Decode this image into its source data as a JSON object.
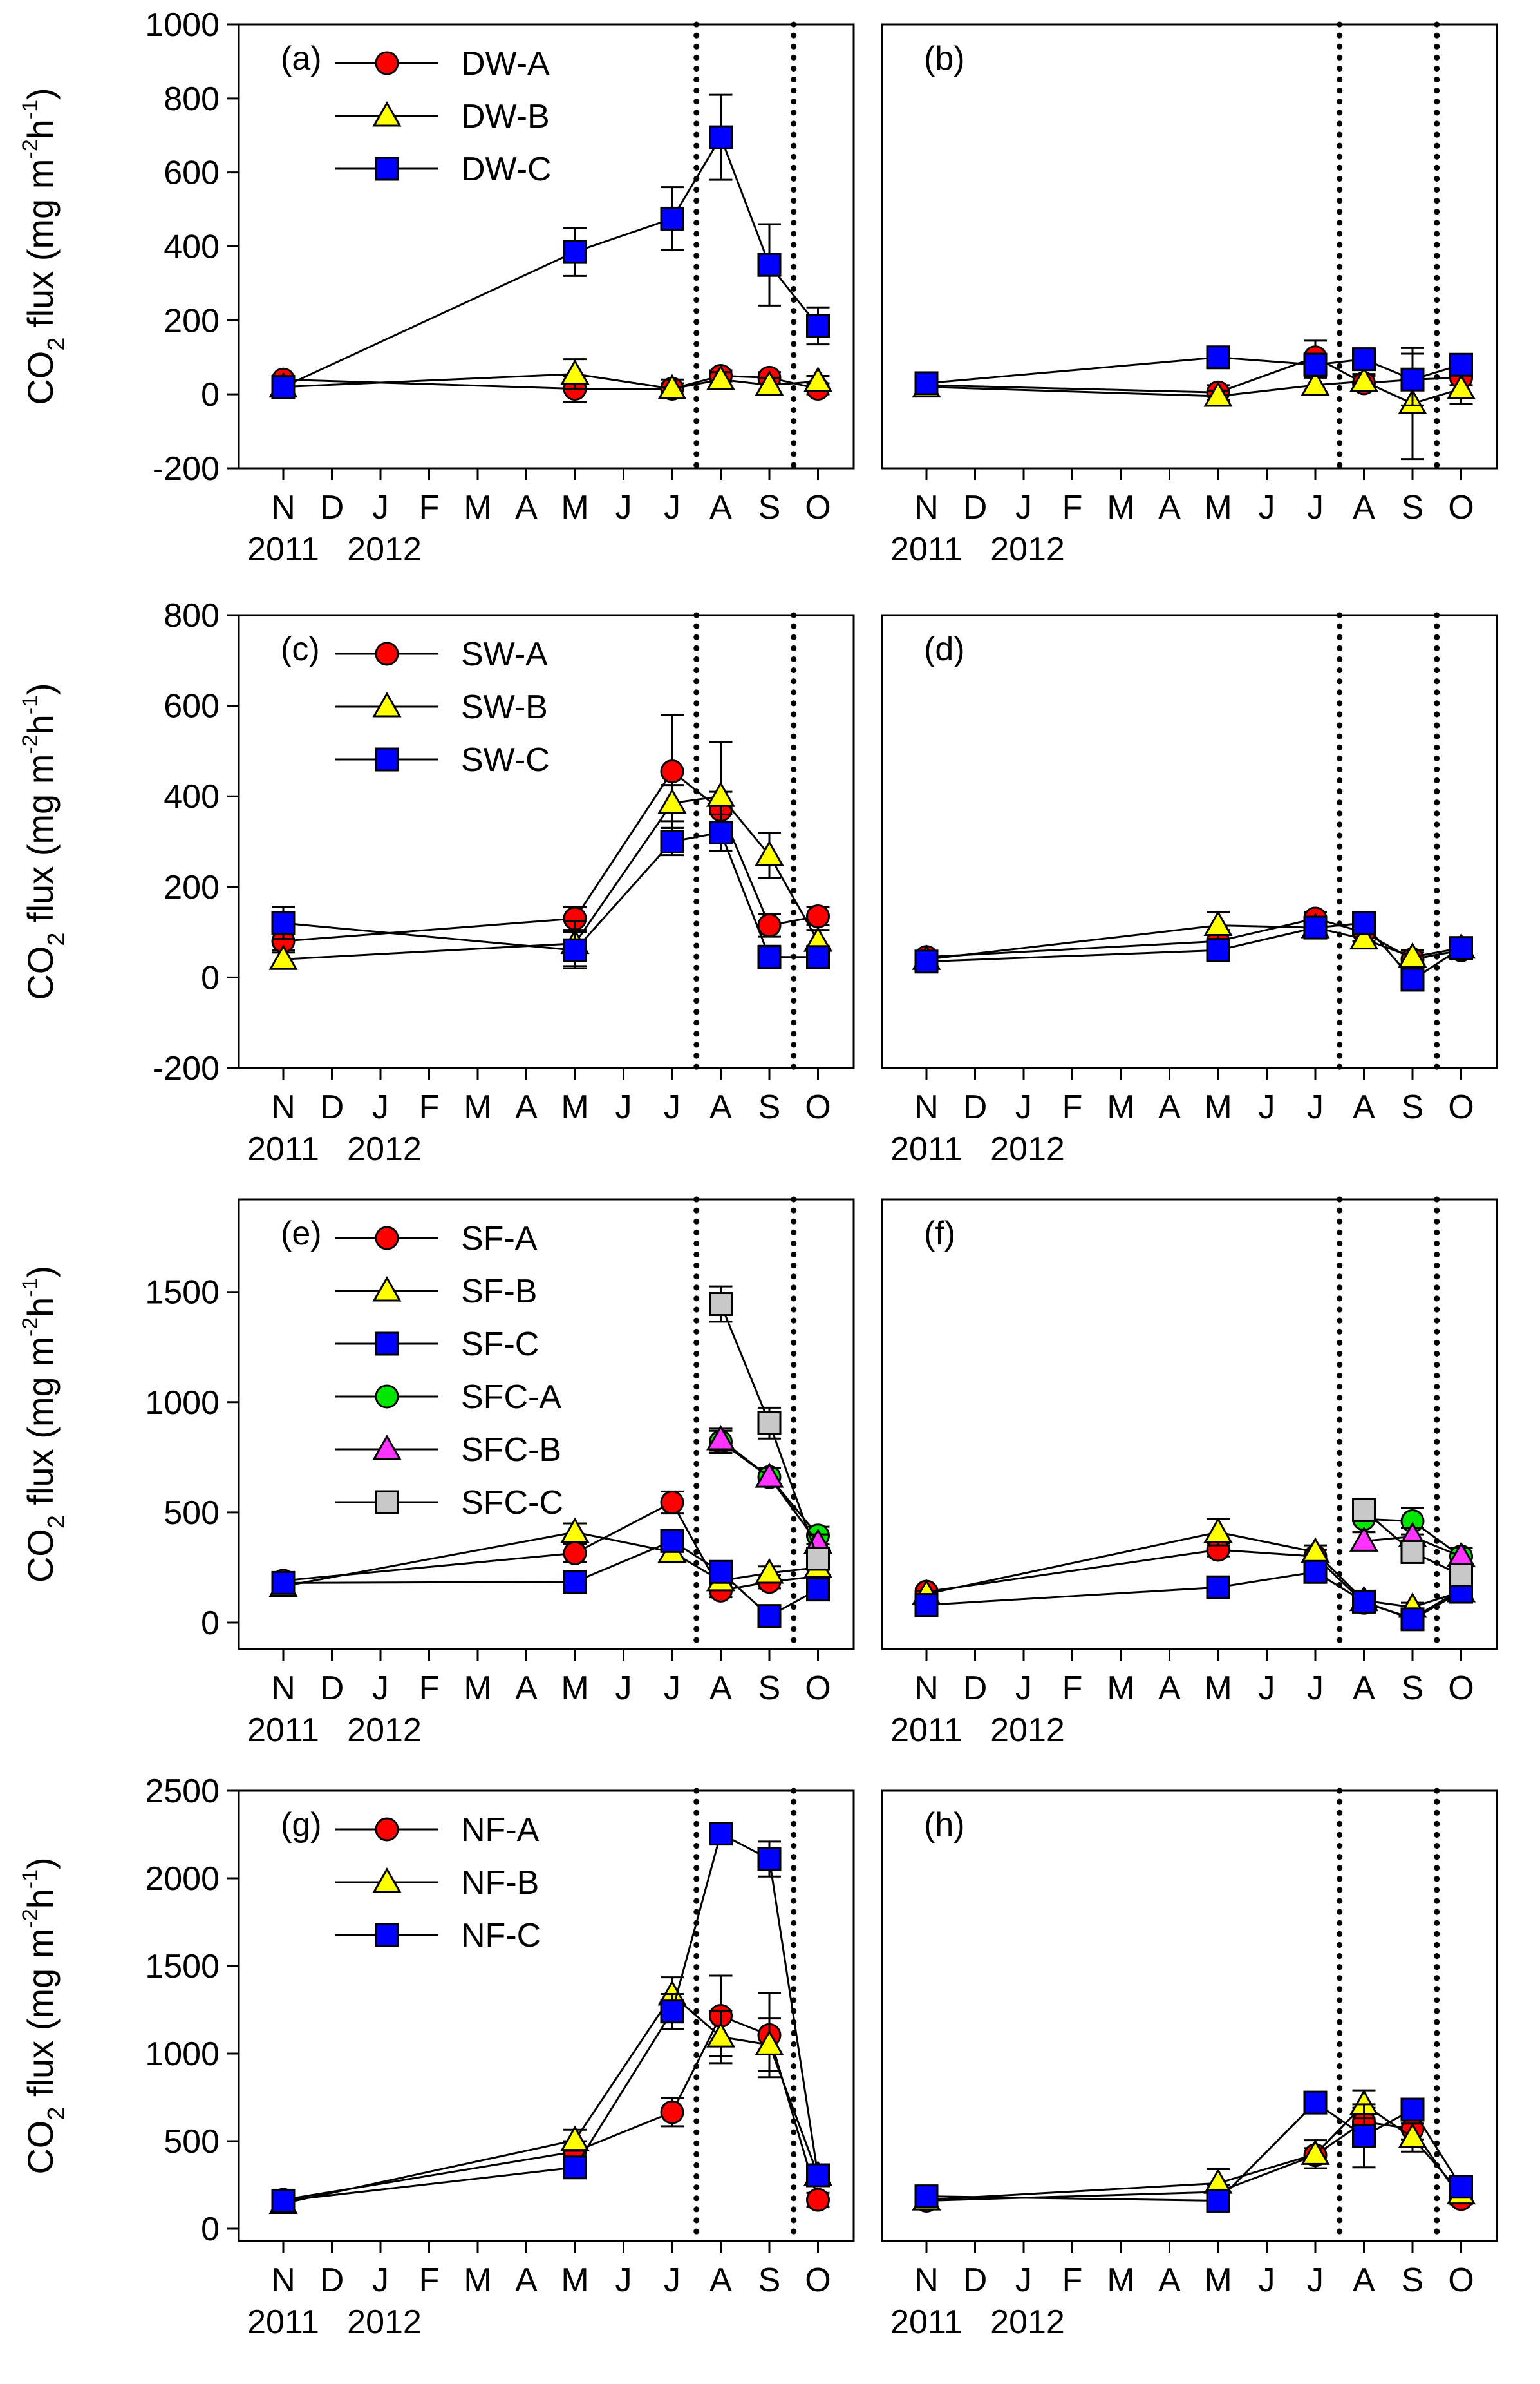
{
  "chart_data": [
    {
      "panel": "(a)",
      "type": "line",
      "ylabel": "CO2 flux (mg m-2h-1)",
      "ylim": [
        -200,
        1000
      ],
      "yticks": [
        -200,
        0,
        200,
        400,
        600,
        800,
        1000
      ],
      "xticks": [
        "N",
        "D",
        "J",
        "F",
        "M",
        "A",
        "M",
        "J",
        "J",
        "A",
        "S",
        "O"
      ],
      "years": [
        "2011",
        "2012"
      ],
      "vlines_month_index": [
        8.5,
        10.5
      ],
      "legend": "top-left",
      "series": [
        {
          "name": "DW-A",
          "marker": "circle",
          "color": "#ff0000",
          "x": [
            0,
            6,
            8,
            9,
            10,
            11
          ],
          "y": [
            40,
            15,
            15,
            50,
            45,
            15
          ],
          "err": [
            10,
            35,
            15,
            15,
            15,
            15
          ]
        },
        {
          "name": "DW-B",
          "marker": "triangle",
          "color": "#ffff00",
          "x": [
            0,
            6,
            8,
            9,
            10,
            11
          ],
          "y": [
            20,
            55,
            15,
            40,
            25,
            35
          ],
          "err": [
            10,
            40,
            25,
            20,
            20,
            15
          ]
        },
        {
          "name": "DW-C",
          "marker": "square",
          "color": "#0000ff",
          "x": [
            0,
            6,
            8,
            9,
            10,
            11
          ],
          "y": [
            20,
            385,
            475,
            695,
            350,
            185
          ],
          "err": [
            15,
            65,
            85,
            115,
            110,
            50
          ]
        }
      ]
    },
    {
      "panel": "(b)",
      "type": "line",
      "ylabel": "",
      "ylim": [
        -200,
        1000
      ],
      "xticks": [
        "N",
        "D",
        "J",
        "F",
        "M",
        "A",
        "M",
        "J",
        "J",
        "A",
        "S",
        "O"
      ],
      "years": [
        "2011",
        "2012"
      ],
      "vlines_month_index": [
        8.5,
        10.5
      ],
      "series": [
        {
          "name": "DW-A",
          "marker": "circle",
          "color": "#ff0000",
          "x": [
            0,
            6,
            8,
            9,
            10,
            11
          ],
          "y": [
            25,
            5,
            100,
            30,
            40,
            45
          ],
          "err": [
            10,
            20,
            45,
            20,
            20,
            20
          ]
        },
        {
          "name": "DW-B",
          "marker": "triangle",
          "color": "#ffff00",
          "x": [
            0,
            6,
            8,
            9,
            10,
            11
          ],
          "y": [
            20,
            -5,
            25,
            35,
            -25,
            15
          ],
          "err": [
            10,
            15,
            20,
            20,
            150,
            40
          ]
        },
        {
          "name": "DW-C",
          "marker": "square",
          "color": "#0000ff",
          "x": [
            0,
            6,
            8,
            9,
            10,
            11
          ],
          "y": [
            30,
            100,
            80,
            95,
            40,
            80
          ],
          "err": [
            10,
            25,
            30,
            20,
            70,
            25
          ]
        }
      ]
    },
    {
      "panel": "(c)",
      "type": "line",
      "ylabel": "CO2 flux (mg m-2h-1)",
      "ylim": [
        -200,
        800
      ],
      "yticks": [
        -200,
        0,
        200,
        400,
        600,
        800
      ],
      "xticks": [
        "N",
        "D",
        "J",
        "F",
        "M",
        "A",
        "M",
        "J",
        "J",
        "A",
        "S",
        "O"
      ],
      "years": [
        "2011",
        "2012"
      ],
      "vlines_month_index": [
        8.5,
        10.5
      ],
      "legend": "top-left",
      "series": [
        {
          "name": "SW-A",
          "marker": "circle",
          "color": "#ff0000",
          "x": [
            0,
            6,
            8,
            9,
            10,
            11
          ],
          "y": [
            80,
            130,
            455,
            370,
            115,
            135
          ],
          "err": [
            20,
            25,
            125,
            40,
            25,
            20
          ]
        },
        {
          "name": "SW-B",
          "marker": "triangle",
          "color": "#ffff00",
          "x": [
            0,
            6,
            8,
            9,
            10,
            11
          ],
          "y": [
            40,
            75,
            385,
            400,
            270,
            80
          ],
          "err": [
            15,
            50,
            40,
            120,
            50,
            25
          ]
        },
        {
          "name": "SW-C",
          "marker": "square",
          "color": "#0000ff",
          "x": [
            0,
            6,
            8,
            9,
            10,
            11
          ],
          "y": [
            120,
            60,
            300,
            320,
            45,
            45
          ],
          "err": [
            35,
            40,
            30,
            40,
            25,
            20
          ]
        }
      ]
    },
    {
      "panel": "(d)",
      "type": "line",
      "ylabel": "",
      "ylim": [
        -200,
        800
      ],
      "xticks": [
        "N",
        "D",
        "J",
        "F",
        "M",
        "A",
        "M",
        "J",
        "J",
        "A",
        "S",
        "O"
      ],
      "years": [
        "2011",
        "2012"
      ],
      "vlines_month_index": [
        8.5,
        10.5
      ],
      "series": [
        {
          "name": "SW-A",
          "marker": "circle",
          "color": "#ff0000",
          "x": [
            0,
            6,
            8,
            9,
            10,
            11
          ],
          "y": [
            45,
            80,
            130,
            100,
            40,
            60
          ],
          "err": [
            10,
            25,
            15,
            20,
            15,
            15
          ]
        },
        {
          "name": "SW-B",
          "marker": "triangle",
          "color": "#ffff00",
          "x": [
            0,
            6,
            8,
            9,
            10,
            11
          ],
          "y": [
            40,
            115,
            110,
            85,
            45,
            65
          ],
          "err": [
            10,
            30,
            20,
            20,
            15,
            15
          ]
        },
        {
          "name": "SW-C",
          "marker": "square",
          "color": "#0000ff",
          "x": [
            0,
            6,
            8,
            9,
            10,
            11
          ],
          "y": [
            35,
            60,
            110,
            120,
            -5,
            65
          ],
          "err": [
            10,
            20,
            20,
            20,
            20,
            15
          ]
        }
      ]
    },
    {
      "panel": "(e)",
      "type": "line",
      "ylabel": "CO2 flux (mg m-2h-1)",
      "ylim": [
        -120,
        1920
      ],
      "yticks": [
        0,
        500,
        1000,
        1500
      ],
      "xticks": [
        "N",
        "D",
        "J",
        "F",
        "M",
        "A",
        "M",
        "J",
        "J",
        "A",
        "S",
        "O"
      ],
      "years": [
        "2011",
        "2012"
      ],
      "vlines_month_index": [
        8.5,
        10.5
      ],
      "legend": "top-left",
      "series": [
        {
          "name": "SF-A",
          "marker": "circle",
          "color": "#ff0000",
          "x": [
            0,
            6,
            8,
            9,
            10,
            11
          ],
          "y": [
            190,
            315,
            545,
            145,
            185,
            210
          ],
          "err": [
            20,
            40,
            50,
            30,
            30,
            30
          ]
        },
        {
          "name": "SF-B",
          "marker": "triangle",
          "color": "#ffff00",
          "x": [
            0,
            6,
            8,
            9,
            10,
            11
          ],
          "y": [
            165,
            410,
            320,
            190,
            225,
            250
          ],
          "err": [
            20,
            40,
            40,
            30,
            30,
            30
          ]
        },
        {
          "name": "SF-C",
          "marker": "square",
          "color": "#0000ff",
          "x": [
            0,
            6,
            8,
            9,
            10,
            11
          ],
          "y": [
            180,
            185,
            370,
            230,
            30,
            150
          ],
          "err": [
            25,
            45,
            40,
            30,
            20,
            30
          ]
        },
        {
          "name": "SFC-A",
          "marker": "circle",
          "color": "#00e600",
          "x": [
            9,
            10,
            11
          ],
          "y": [
            820,
            660,
            395
          ],
          "err": [
            50,
            40,
            40
          ]
        },
        {
          "name": "SFC-B",
          "marker": "triangle",
          "color": "#ff33ff",
          "x": [
            9,
            10,
            11
          ],
          "y": [
            830,
            660,
            360
          ],
          "err": [
            50,
            40,
            40
          ]
        },
        {
          "name": "SFC-C",
          "marker": "square",
          "color": "#c8c8c8",
          "x": [
            9,
            10,
            11
          ],
          "y": [
            1445,
            905,
            290
          ],
          "err": [
            80,
            70,
            50
          ]
        }
      ]
    },
    {
      "panel": "(f)",
      "type": "line",
      "ylabel": "",
      "ylim": [
        -120,
        1920
      ],
      "xticks": [
        "N",
        "D",
        "J",
        "F",
        "M",
        "A",
        "M",
        "J",
        "J",
        "A",
        "S",
        "O"
      ],
      "years": [
        "2011",
        "2012"
      ],
      "vlines_month_index": [
        8.5,
        10.5
      ],
      "series": [
        {
          "name": "SF-A",
          "marker": "circle",
          "color": "#ff0000",
          "x": [
            0,
            6,
            8,
            9,
            10,
            11
          ],
          "y": [
            140,
            330,
            300,
            90,
            20,
            150
          ],
          "err": [
            15,
            30,
            30,
            20,
            15,
            20
          ]
        },
        {
          "name": "SF-B",
          "marker": "triangle",
          "color": "#ffff00",
          "x": [
            0,
            6,
            8,
            9,
            10,
            11
          ],
          "y": [
            130,
            410,
            320,
            100,
            70,
            140
          ],
          "err": [
            15,
            60,
            30,
            20,
            20,
            20
          ]
        },
        {
          "name": "SF-C",
          "marker": "square",
          "color": "#0000ff",
          "x": [
            0,
            6,
            8,
            9,
            10,
            11
          ],
          "y": [
            80,
            160,
            230,
            95,
            15,
            140
          ],
          "err": [
            15,
            30,
            30,
            20,
            15,
            20
          ]
        },
        {
          "name": "SFC-A",
          "marker": "circle",
          "color": "#00e600",
          "x": [
            9,
            10,
            11
          ],
          "y": [
            470,
            460,
            300
          ],
          "err": [
            60,
            60,
            40
          ]
        },
        {
          "name": "SFC-B",
          "marker": "triangle",
          "color": "#ff33ff",
          "x": [
            9,
            10,
            11
          ],
          "y": [
            370,
            390,
            300
          ],
          "err": [
            40,
            40,
            40
          ]
        },
        {
          "name": "SFC-C",
          "marker": "square",
          "color": "#c8c8c8",
          "x": [
            9,
            10,
            11
          ],
          "y": [
            510,
            320,
            215
          ],
          "err": [
            50,
            40,
            30
          ]
        }
      ]
    },
    {
      "panel": "(g)",
      "type": "line",
      "ylabel": "CO2 flux (mg m-2h-1)",
      "ylim": [
        -70,
        2500
      ],
      "yticks": [
        0,
        500,
        1000,
        1500,
        2000,
        2500
      ],
      "xticks": [
        "N",
        "D",
        "J",
        "F",
        "M",
        "A",
        "M",
        "J",
        "J",
        "A",
        "S",
        "O"
      ],
      "years": [
        "2011",
        "2012"
      ],
      "vlines_month_index": [
        8.5,
        10.5
      ],
      "legend": "top-left",
      "series": [
        {
          "name": "NF-A",
          "marker": "circle",
          "color": "#ff0000",
          "x": [
            0,
            6,
            8,
            9,
            10,
            11
          ],
          "y": [
            165,
            440,
            665,
            1215,
            1105,
            165
          ],
          "err": [
            30,
            60,
            80,
            230,
            240,
            40
          ]
        },
        {
          "name": "NF-B",
          "marker": "triangle",
          "color": "#ffff00",
          "x": [
            0,
            6,
            8,
            9,
            10,
            11
          ],
          "y": [
            145,
            505,
            1335,
            1095,
            1050,
            305
          ],
          "err": [
            30,
            60,
            100,
            150,
            150,
            60
          ]
        },
        {
          "name": "NF-C",
          "marker": "square",
          "color": "#0000ff",
          "x": [
            0,
            6,
            8,
            9,
            10,
            11
          ],
          "y": [
            160,
            350,
            1240,
            2255,
            2110,
            305
          ],
          "err": [
            40,
            50,
            100,
            40,
            100,
            60
          ]
        }
      ]
    },
    {
      "panel": "(h)",
      "type": "line",
      "ylabel": "",
      "ylim": [
        -70,
        2500
      ],
      "xticks": [
        "N",
        "D",
        "J",
        "F",
        "M",
        "A",
        "M",
        "J",
        "J",
        "A",
        "S",
        "O"
      ],
      "years": [
        "2011",
        "2012"
      ],
      "vlines_month_index": [
        8.5,
        10.5
      ],
      "series": [
        {
          "name": "NF-A",
          "marker": "circle",
          "color": "#ff0000",
          "x": [
            0,
            6,
            8,
            9,
            10,
            11
          ],
          "y": [
            160,
            210,
            420,
            610,
            570,
            170
          ],
          "err": [
            20,
            40,
            40,
            80,
            60,
            30
          ]
        },
        {
          "name": "NF-B",
          "marker": "triangle",
          "color": "#ffff00",
          "x": [
            0,
            6,
            8,
            9,
            10,
            11
          ],
          "y": [
            165,
            260,
            425,
            710,
            520,
            200
          ],
          "err": [
            20,
            80,
            80,
            80,
            80,
            40
          ]
        },
        {
          "name": "NF-C",
          "marker": "square",
          "color": "#0000ff",
          "x": [
            0,
            6,
            8,
            9,
            10,
            11
          ],
          "y": [
            185,
            160,
            720,
            530,
            680,
            240
          ],
          "err": [
            20,
            30,
            40,
            180,
            60,
            40
          ]
        }
      ]
    }
  ]
}
